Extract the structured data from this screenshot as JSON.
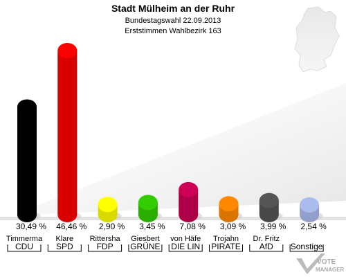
{
  "chart_data": {
    "type": "bar",
    "title": "Stadt Mülheim an der Ruhr",
    "subtitle": "Bundestagswahl 22.09.2013",
    "subtitle2": "Erststimmen Wahlbezirk 163",
    "categories": [
      "CDU",
      "SPD",
      "FDP",
      "GRÜNE",
      "DIE LIN",
      "PIRATE",
      "AfD",
      "Sonstige"
    ],
    "candidates": [
      "Timmerma",
      "Klare",
      "Rittersha",
      "Giesbert",
      "von Häfe",
      "Trojahn",
      "Dr. Fritz",
      ""
    ],
    "values": [
      30.49,
      46.46,
      2.9,
      3.45,
      7.08,
      3.09,
      3.99,
      2.54
    ],
    "value_labels": [
      "30,49 %",
      "46,46 %",
      "2,90 %",
      "3,45 %",
      "7,08 %",
      "3,09 %",
      "3,99 %",
      "2,54 %"
    ],
    "colors": [
      "#000000",
      "#ff0000",
      "#ffff00",
      "#33cc00",
      "#cc0055",
      "#ff8800",
      "#555555",
      "#aabbee"
    ],
    "ylim": [
      0,
      50
    ]
  },
  "watermark": "VOTE MANAGER"
}
